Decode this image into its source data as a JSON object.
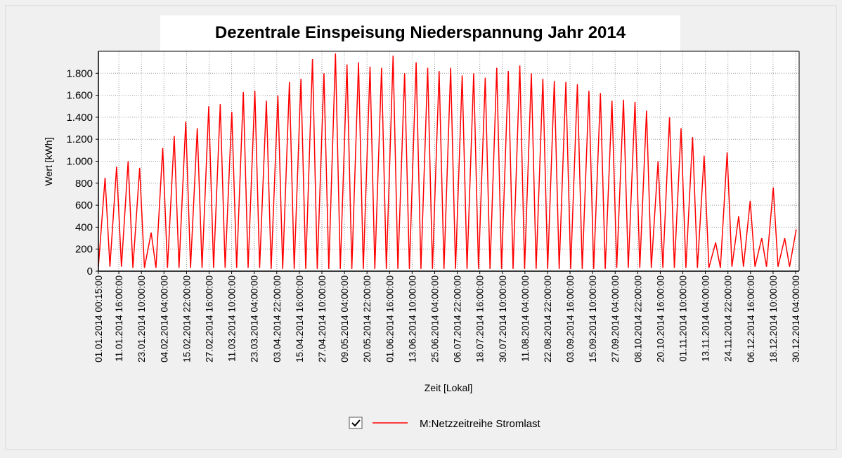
{
  "chart_data": {
    "type": "line",
    "title": "Dezentrale Einspeisung Niederspannung Jahr 2014",
    "x_label": "Zeit [Lokal]",
    "y_label": "Wert [kWh]",
    "xlim": [
      "01.01.2014 00:15:00",
      "31.12.2014 23:45:00"
    ],
    "xticks": [
      "01.01.2014 00:15:00",
      "11.01.2014 16:00:00",
      "23.01.2014 10:00:00",
      "04.02.2014 04:00:00",
      "15.02.2014 22:00:00",
      "27.02.2014 16:00:00",
      "11.03.2014 10:00:00",
      "23.03.2014 04:00:00",
      "03.04.2014 22:00:00",
      "15.04.2014 16:00:00",
      "27.04.2014 10:00:00",
      "09.05.2014 04:00:00",
      "20.05.2014 22:00:00",
      "01.06.2014 16:00:00",
      "13.06.2014 10:00:00",
      "25.06.2014 04:00:00",
      "06.07.2014 22:00:00",
      "18.07.2014 16:00:00",
      "30.07.2014 10:00:00",
      "11.08.2014 04:00:00",
      "22.08.2014 22:00:00",
      "03.09.2014 16:00:00",
      "15.09.2014 10:00:00",
      "27.09.2014 04:00:00",
      "08.10.2014 22:00:00",
      "20.10.2014 16:00:00",
      "01.11.2014 10:00:00",
      "13.11.2014 04:00:00",
      "24.11.2014 22:00:00",
      "06.12.2014 16:00:00",
      "18.12.2014 10:00:00",
      "30.12.2014 04:00:00"
    ],
    "ylim": [
      0,
      2000
    ],
    "yticks": [
      0,
      200,
      400,
      600,
      800,
      {
        "value": 1000,
        "label": "1.000"
      },
      {
        "value": 1200,
        "label": "1.200"
      },
      {
        "value": 1400,
        "label": "1.400"
      },
      {
        "value": 1600,
        "label": "1.600"
      },
      {
        "value": 1800,
        "label": "1.800"
      }
    ],
    "grid": true,
    "legend": "bottom",
    "x": [
      "01.01.2014 00:15:00",
      "04.01.2014 12:00:00",
      "07.01.2014 00:00:00",
      "10.01.2014 12:00:00",
      "13.01.2014 00:00:00",
      "16.01.2014 12:00:00",
      "19.01.2014 00:00:00",
      "22.01.2014 12:00:00",
      "25.01.2014 00:00:00",
      "28.01.2014 12:00:00",
      "31.01.2014 00:00:00",
      "03.02.2014 12:00:00",
      "06.02.2014 00:00:00",
      "09.02.2014 12:00:00",
      "12.02.2014 00:00:00",
      "15.02.2014 12:00:00",
      "18.02.2014 00:00:00",
      "21.02.2014 12:00:00",
      "24.02.2014 00:00:00",
      "27.02.2014 12:00:00",
      "02.03.2014 00:00:00",
      "05.03.2014 12:00:00",
      "08.03.2014 00:00:00",
      "11.03.2014 12:00:00",
      "14.03.2014 00:00:00",
      "17.03.2014 12:00:00",
      "20.03.2014 00:00:00",
      "23.03.2014 12:00:00",
      "26.03.2014 00:00:00",
      "29.03.2014 12:00:00",
      "01.04.2014 00:00:00",
      "04.04.2014 12:00:00",
      "07.04.2014 00:00:00",
      "10.04.2014 12:00:00",
      "13.04.2014 00:00:00",
      "16.04.2014 12:00:00",
      "19.04.2014 00:00:00",
      "22.04.2014 12:00:00",
      "25.04.2014 00:00:00",
      "28.04.2014 12:00:00",
      "01.05.2014 00:00:00",
      "04.05.2014 12:00:00",
      "07.05.2014 00:00:00",
      "10.05.2014 12:00:00",
      "13.05.2014 00:00:00",
      "16.05.2014 12:00:00",
      "19.05.2014 00:00:00",
      "22.05.2014 12:00:00",
      "25.05.2014 00:00:00",
      "28.05.2014 12:00:00",
      "31.05.2014 00:00:00",
      "03.06.2014 12:00:00",
      "06.06.2014 00:00:00",
      "09.06.2014 12:00:00",
      "12.06.2014 00:00:00",
      "15.06.2014 12:00:00",
      "18.06.2014 00:00:00",
      "21.06.2014 12:00:00",
      "24.06.2014 00:00:00",
      "27.06.2014 12:00:00",
      "30.06.2014 00:00:00",
      "03.07.2014 12:00:00",
      "06.07.2014 00:00:00",
      "09.07.2014 12:00:00",
      "12.07.2014 00:00:00",
      "15.07.2014 12:00:00",
      "18.07.2014 00:00:00",
      "21.07.2014 12:00:00",
      "24.07.2014 00:00:00",
      "27.07.2014 12:00:00",
      "30.07.2014 00:00:00",
      "02.08.2014 12:00:00",
      "05.08.2014 00:00:00",
      "08.08.2014 12:00:00",
      "11.08.2014 00:00:00",
      "14.08.2014 12:00:00",
      "17.08.2014 00:00:00",
      "20.08.2014 12:00:00",
      "23.08.2014 00:00:00",
      "26.08.2014 12:00:00",
      "29.08.2014 00:00:00",
      "01.09.2014 12:00:00",
      "04.09.2014 00:00:00",
      "07.09.2014 12:00:00",
      "10.09.2014 00:00:00",
      "13.09.2014 12:00:00",
      "16.09.2014 00:00:00",
      "19.09.2014 12:00:00",
      "22.09.2014 00:00:00",
      "25.09.2014 12:00:00",
      "28.09.2014 00:00:00",
      "01.10.2014 12:00:00",
      "04.10.2014 00:00:00",
      "07.10.2014 12:00:00",
      "10.10.2014 00:00:00",
      "13.10.2014 12:00:00",
      "16.10.2014 00:00:00",
      "19.10.2014 12:00:00",
      "22.10.2014 00:00:00",
      "25.10.2014 12:00:00",
      "28.10.2014 00:00:00",
      "31.10.2014 12:00:00",
      "03.11.2014 00:00:00",
      "06.11.2014 12:00:00",
      "09.11.2014 00:00:00",
      "12.11.2014 12:00:00",
      "15.11.2014 00:00:00",
      "18.11.2014 12:00:00",
      "21.11.2014 00:00:00",
      "24.11.2014 12:00:00",
      "27.11.2014 00:00:00",
      "30.11.2014 12:00:00",
      "03.12.2014 00:00:00",
      "06.12.2014 12:00:00",
      "09.12.2014 00:00:00",
      "12.12.2014 12:00:00",
      "15.12.2014 00:00:00",
      "18.12.2014 12:00:00",
      "21.12.2014 00:00:00",
      "24.12.2014 12:00:00",
      "27.12.2014 00:00:00",
      "30.12.2014 12:00:00"
    ],
    "series": [
      {
        "name": "M:Netzzeitreihe Stromlast",
        "color": "#ff0000",
        "values": [
          40,
          850,
          40,
          950,
          40,
          1000,
          30,
          940,
          30,
          350,
          30,
          1120,
          30,
          1230,
          30,
          1360,
          30,
          1300,
          30,
          1500,
          30,
          1520,
          30,
          1450,
          30,
          1630,
          30,
          1640,
          30,
          1550,
          20,
          1600,
          20,
          1720,
          20,
          1750,
          20,
          1930,
          20,
          1800,
          20,
          1980,
          20,
          1880,
          20,
          1900,
          20,
          1860,
          20,
          1850,
          20,
          1960,
          20,
          1800,
          20,
          1900,
          20,
          1850,
          20,
          1820,
          20,
          1850,
          20,
          1780,
          20,
          1800,
          20,
          1760,
          20,
          1850,
          20,
          1820,
          20,
          1870,
          20,
          1800,
          20,
          1750,
          20,
          1730,
          20,
          1720,
          20,
          1700,
          20,
          1640,
          20,
          1620,
          20,
          1550,
          30,
          1560,
          30,
          1540,
          30,
          1460,
          30,
          1000,
          30,
          1400,
          30,
          1300,
          30,
          1220,
          30,
          1050,
          30,
          260,
          30,
          1080,
          40,
          500,
          40,
          640,
          40,
          300,
          40,
          760,
          40,
          300,
          40,
          380
        ]
      }
    ]
  }
}
